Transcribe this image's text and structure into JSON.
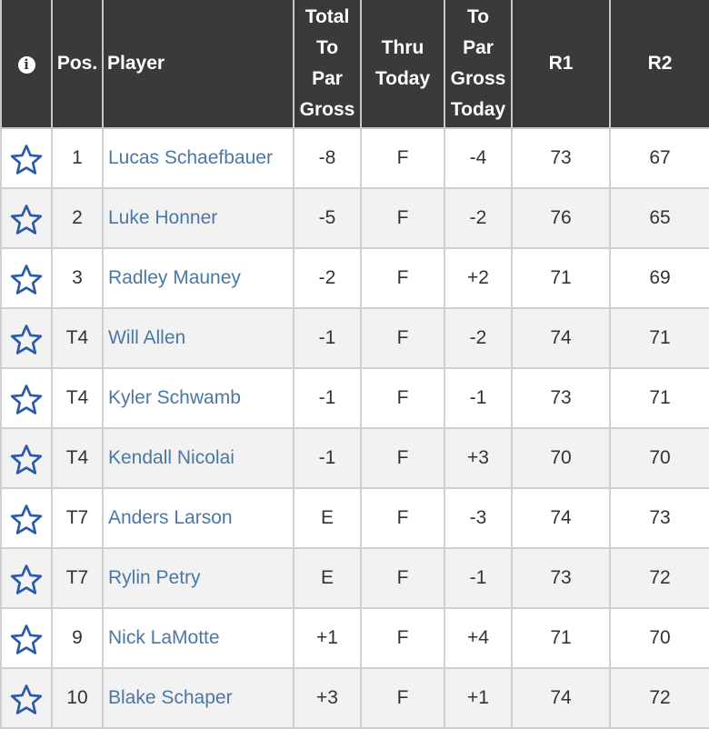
{
  "header": {
    "info_icon_glyph": "i",
    "pos": "Pos.",
    "player": "Player",
    "total_to_par_gross": [
      "Total",
      "To",
      "Par",
      "Gross"
    ],
    "thru_today": [
      "Thru",
      "Today"
    ],
    "to_par_gross_today": [
      "To",
      "Par",
      "Gross",
      "Today"
    ],
    "r1": "R1",
    "r2": "R2"
  },
  "rows": [
    {
      "pos": "1",
      "player": "Lucas Schaefbauer",
      "total": "-8",
      "thru": "F",
      "today": "-4",
      "r1": "73",
      "r2": "67"
    },
    {
      "pos": "2",
      "player": "Luke Honner",
      "total": "-5",
      "thru": "F",
      "today": "-2",
      "r1": "76",
      "r2": "65"
    },
    {
      "pos": "3",
      "player": "Radley Mauney",
      "total": "-2",
      "thru": "F",
      "today": "+2",
      "r1": "71",
      "r2": "69"
    },
    {
      "pos": "T4",
      "player": "Will Allen",
      "total": "-1",
      "thru": "F",
      "today": "-2",
      "r1": "74",
      "r2": "71"
    },
    {
      "pos": "T4",
      "player": "Kyler Schwamb",
      "total": "-1",
      "thru": "F",
      "today": "-1",
      "r1": "73",
      "r2": "71"
    },
    {
      "pos": "T4",
      "player": "Kendall Nicolai",
      "total": "-1",
      "thru": "F",
      "today": "+3",
      "r1": "70",
      "r2": "70"
    },
    {
      "pos": "T7",
      "player": "Anders Larson",
      "total": "E",
      "thru": "F",
      "today": "-3",
      "r1": "74",
      "r2": "73"
    },
    {
      "pos": "T7",
      "player": "Rylin Petry",
      "total": "E",
      "thru": "F",
      "today": "-1",
      "r1": "73",
      "r2": "72"
    },
    {
      "pos": "9",
      "player": "Nick LaMotte",
      "total": "+1",
      "thru": "F",
      "today": "+4",
      "r1": "71",
      "r2": "70"
    },
    {
      "pos": "10",
      "player": "Blake Schaper",
      "total": "+3",
      "thru": "F",
      "today": "+1",
      "r1": "74",
      "r2": "72"
    }
  ],
  "colors": {
    "header_bg": "#3a3a3c",
    "player_link": "#4a78a6",
    "star_outline": "#2b5aa8",
    "row_alt": "#f2f2f2",
    "border": "#cfcfcf"
  },
  "icons": {
    "info": "info-icon",
    "favorite": "star-outline-icon"
  }
}
